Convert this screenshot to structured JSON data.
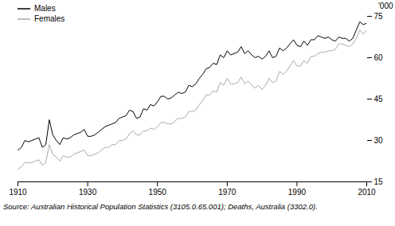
{
  "chart_data": {
    "type": "line",
    "y_label": "'000",
    "caption": "Source: Australian Historical Population Statistics (3105.0.65.001); Deaths, Australia (3302.0).",
    "legend": "top-left",
    "grid": false,
    "xlim": [
      1910,
      2010
    ],
    "xticks": [
      1910,
      1930,
      1950,
      1970,
      1990,
      2010
    ],
    "ylim": [
      15,
      75
    ],
    "yticks": [
      15,
      30,
      45,
      60,
      75
    ],
    "x": [
      1910,
      1911,
      1912,
      1913,
      1914,
      1915,
      1916,
      1917,
      1918,
      1919,
      1920,
      1921,
      1922,
      1923,
      1924,
      1925,
      1926,
      1927,
      1928,
      1929,
      1930,
      1931,
      1932,
      1933,
      1934,
      1935,
      1936,
      1937,
      1938,
      1939,
      1940,
      1941,
      1942,
      1943,
      1944,
      1945,
      1946,
      1947,
      1948,
      1949,
      1950,
      1951,
      1952,
      1953,
      1954,
      1955,
      1956,
      1957,
      1958,
      1959,
      1960,
      1961,
      1962,
      1963,
      1964,
      1965,
      1966,
      1967,
      1968,
      1969,
      1970,
      1971,
      1972,
      1973,
      1974,
      1975,
      1976,
      1977,
      1978,
      1979,
      1980,
      1981,
      1982,
      1983,
      1984,
      1985,
      1986,
      1987,
      1988,
      1989,
      1990,
      1991,
      1992,
      1993,
      1994,
      1995,
      1996,
      1997,
      1998,
      1999,
      2000,
      2001,
      2002,
      2003,
      2004,
      2005,
      2006,
      2007,
      2008,
      2009,
      2010
    ],
    "series": [
      {
        "name": "Males",
        "color": "#000000",
        "values": [
          26.5,
          27.5,
          30,
          29.5,
          30,
          30.5,
          31,
          27.5,
          28.5,
          37.5,
          32,
          30,
          28.5,
          31,
          30.5,
          31,
          32,
          32.5,
          33,
          34,
          31.5,
          31.5,
          32,
          33,
          34,
          35,
          35.5,
          36,
          36.5,
          38,
          38.5,
          39,
          41,
          40.5,
          38,
          38.5,
          41.5,
          41,
          43,
          42.5,
          44,
          46,
          46,
          45,
          45.5,
          46.5,
          47.5,
          47,
          47.5,
          50,
          49.5,
          50.5,
          52.5,
          54,
          56,
          56.5,
          58,
          57.5,
          61,
          60,
          62.5,
          61,
          61.5,
          62,
          64,
          61.5,
          62.5,
          61,
          60,
          60.5,
          59.5,
          60.5,
          62.5,
          60,
          60.5,
          63.5,
          62.5,
          63.5,
          65,
          66.5,
          64.5,
          64,
          66,
          64.5,
          66.5,
          66.5,
          68,
          67.5,
          67,
          67.5,
          66.5,
          66,
          67.5,
          67,
          67,
          66,
          67,
          70,
          73,
          72,
          72.5
        ]
      },
      {
        "name": "Females",
        "color": "#aaaaaa",
        "values": [
          19.5,
          20.5,
          22,
          22,
          22,
          22.5,
          23,
          21,
          22,
          28.5,
          25,
          24,
          22.5,
          24.5,
          24,
          24,
          25,
          25.5,
          26,
          26.5,
          24.5,
          24.5,
          25,
          25.5,
          26.5,
          27.5,
          27.5,
          28.5,
          28.5,
          30,
          30,
          30.5,
          32.5,
          33.5,
          32,
          32,
          33.5,
          33.5,
          34.5,
          34,
          35,
          36.5,
          36.5,
          36,
          36,
          37,
          38,
          38,
          38.5,
          40.5,
          40.5,
          41,
          43,
          44.5,
          46.5,
          46.5,
          48,
          47.5,
          51,
          50,
          52.5,
          50.5,
          50.5,
          51,
          53,
          50.5,
          51.5,
          50,
          49,
          50,
          48.5,
          50,
          52.5,
          51,
          51.5,
          55,
          54,
          55,
          57,
          59,
          57,
          57,
          59,
          58,
          60.5,
          60.5,
          61.5,
          62,
          62,
          62.5,
          62.5,
          63,
          65,
          65,
          64.5,
          64,
          65,
          67,
          70,
          68.5,
          70
        ]
      }
    ]
  }
}
